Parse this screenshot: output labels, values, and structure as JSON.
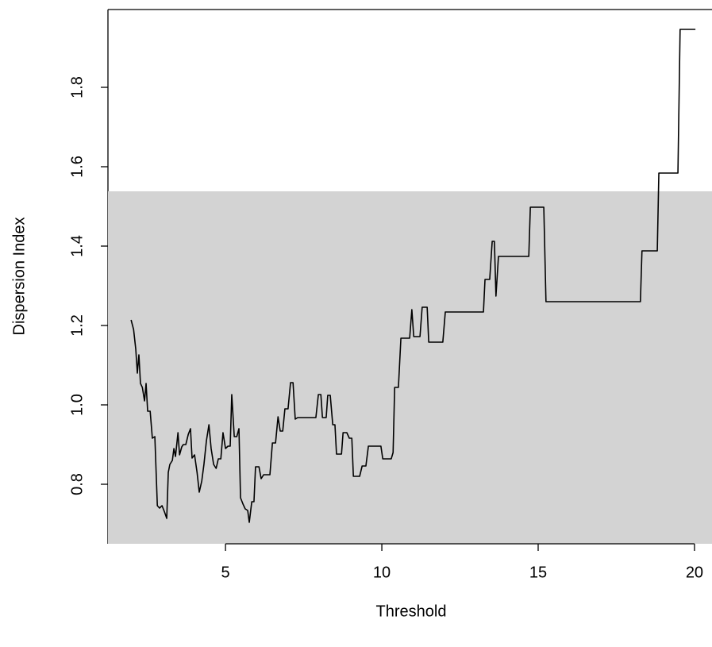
{
  "chart_data": {
    "type": "line",
    "xlabel": "Threshold",
    "ylabel": "Dispersion Index",
    "xlim": [
      1.24,
      20.56
    ],
    "ylim": [
      0.65,
      1.996
    ],
    "xticks": [
      5,
      10,
      15,
      20
    ],
    "yticks": [
      0.8,
      {
        "value": 1,
        "label": "1.0"
      },
      1.2,
      1.4,
      1.6,
      1.8
    ],
    "band": [
      0.65,
      1.538
    ],
    "band_color": "#d3d3d3",
    "series": [
      {
        "color": "#000000",
        "x": [
          1.98,
          2.06,
          2.13,
          2.18,
          2.23,
          2.28,
          2.34,
          2.41,
          2.46,
          2.51,
          2.59,
          2.66,
          2.74,
          2.82,
          2.89,
          2.97,
          3.05,
          3.12,
          3.17,
          3.22,
          3.3,
          3.35,
          3.4,
          3.48,
          3.53,
          3.6,
          3.65,
          3.73,
          3.81,
          3.88,
          3.93,
          4.01,
          4.09,
          4.16,
          4.24,
          4.31,
          4.39,
          4.47,
          4.54,
          4.62,
          4.7,
          4.77,
          4.85,
          4.92,
          5.0,
          5.08,
          5.15,
          5.2,
          5.28,
          5.36,
          5.43,
          5.48,
          5.56,
          5.63,
          5.71,
          5.76,
          5.84,
          5.91,
          5.96,
          6.07,
          6.14,
          6.22,
          6.42,
          6.5,
          6.6,
          6.68,
          6.75,
          6.83,
          6.9,
          7.0,
          7.08,
          7.16,
          7.23,
          7.31,
          7.89,
          7.97,
          8.05,
          8.1,
          8.22,
          8.27,
          8.35,
          8.43,
          8.5,
          8.55,
          8.71,
          8.76,
          8.88,
          8.96,
          9.04,
          9.09,
          9.29,
          9.37,
          9.49,
          9.57,
          9.97,
          10.03,
          10.3,
          10.36,
          10.41,
          10.53,
          10.61,
          10.89,
          10.96,
          11.02,
          11.22,
          11.29,
          11.45,
          11.5,
          11.95,
          12.03,
          13.25,
          13.3,
          13.45,
          13.53,
          13.6,
          13.65,
          13.73,
          14.7,
          14.75,
          15.18,
          15.25,
          18.27,
          18.32,
          18.81,
          18.86,
          19.47,
          19.54,
          20.03
        ],
        "values": [
          1.214,
          1.19,
          1.14,
          1.08,
          1.126,
          1.054,
          1.044,
          1.01,
          1.054,
          0.984,
          0.984,
          0.916,
          0.92,
          0.746,
          0.74,
          0.746,
          0.73,
          0.714,
          0.83,
          0.85,
          0.86,
          0.89,
          0.87,
          0.93,
          0.874,
          0.894,
          0.9,
          0.9,
          0.926,
          0.94,
          0.866,
          0.874,
          0.83,
          0.78,
          0.808,
          0.85,
          0.91,
          0.95,
          0.89,
          0.85,
          0.84,
          0.864,
          0.864,
          0.93,
          0.89,
          0.896,
          0.896,
          1.026,
          0.92,
          0.92,
          0.94,
          0.766,
          0.75,
          0.738,
          0.734,
          0.704,
          0.756,
          0.756,
          0.844,
          0.844,
          0.814,
          0.824,
          0.824,
          0.904,
          0.904,
          0.97,
          0.934,
          0.934,
          0.99,
          0.99,
          1.056,
          1.056,
          0.964,
          0.968,
          0.968,
          1.026,
          1.026,
          0.968,
          0.968,
          1.024,
          1.024,
          0.95,
          0.95,
          0.876,
          0.876,
          0.93,
          0.93,
          0.916,
          0.916,
          0.82,
          0.82,
          0.846,
          0.846,
          0.896,
          0.896,
          0.864,
          0.864,
          0.88,
          1.044,
          1.044,
          1.168,
          1.168,
          1.24,
          1.172,
          1.172,
          1.246,
          1.246,
          1.158,
          1.158,
          1.234,
          1.234,
          1.316,
          1.316,
          1.412,
          1.412,
          1.274,
          1.374,
          1.374,
          1.498,
          1.498,
          1.26,
          1.26,
          1.388,
          1.388,
          1.584,
          1.584,
          1.946,
          1.946
        ]
      }
    ]
  }
}
